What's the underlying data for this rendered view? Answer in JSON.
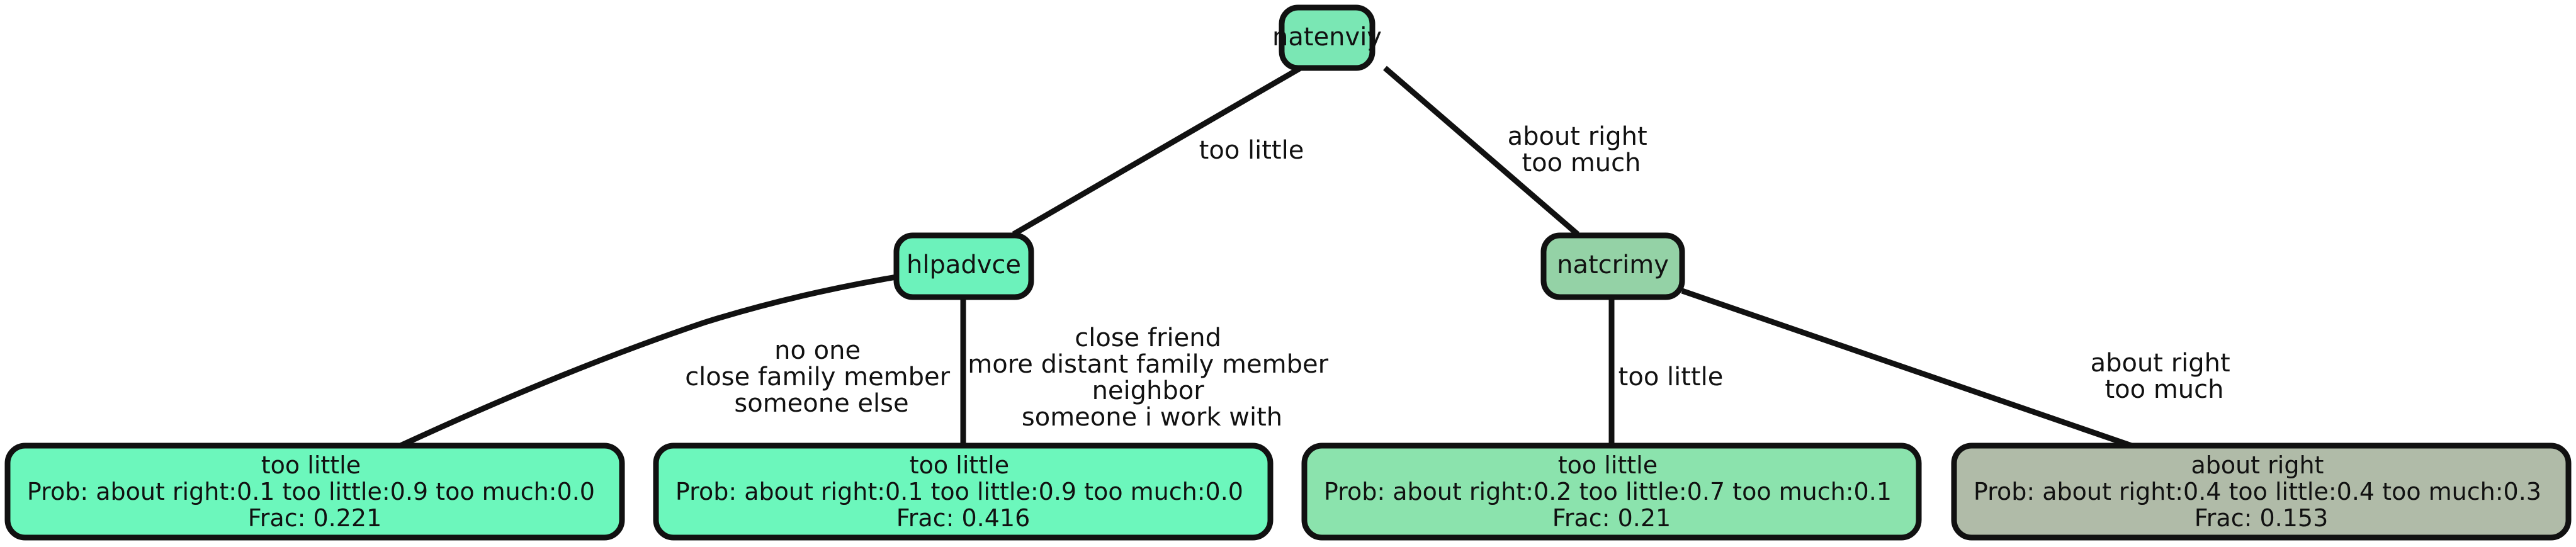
{
  "tree": {
    "nodes": [
      {
        "id": "natenviy",
        "label": "natenviy",
        "color": "#7ae7b4"
      },
      {
        "id": "hlpadvce",
        "label": "hlpadvce",
        "color": "#6cf2bb"
      },
      {
        "id": "natcrimy",
        "label": "natcrimy",
        "color": "#94d2a6"
      }
    ],
    "leaves": [
      {
        "id": "leaf1",
        "class": "too little",
        "prob": "Prob: about right:0.1 too little:0.9 too much:0.0",
        "frac": "Frac: 0.221",
        "color": "#6cf7bc"
      },
      {
        "id": "leaf2",
        "class": "too little",
        "prob": "Prob: about right:0.1 too little:0.9 too much:0.0",
        "frac": "Frac: 0.416",
        "color": "#6cf7bc"
      },
      {
        "id": "leaf3",
        "class": "too little",
        "prob": "Prob: about right:0.2 too little:0.7 too much:0.1",
        "frac": "Frac: 0.21",
        "color": "#8be3ad"
      },
      {
        "id": "leaf4",
        "class": "about right",
        "prob": "Prob: about right:0.4 too little:0.4 too much:0.3",
        "frac": "Frac: 0.153",
        "color": "#b0bba8"
      }
    ],
    "edges": [
      {
        "id": "e-natenviy-hlpadvce",
        "lines": [
          "too little"
        ]
      },
      {
        "id": "e-natenviy-natcrimy",
        "lines": [
          "about right",
          "too much"
        ]
      },
      {
        "id": "e-hlpadvce-leaf1",
        "lines": [
          "no one",
          "close family member",
          "someone else"
        ]
      },
      {
        "id": "e-hlpadvce-leaf2",
        "lines": [
          "close friend",
          "more distant family member",
          "neighbor",
          "someone i work with"
        ]
      },
      {
        "id": "e-natcrimy-leaf3",
        "lines": [
          "too little"
        ]
      },
      {
        "id": "e-natcrimy-leaf4",
        "lines": [
          "about right",
          "too much"
        ]
      }
    ]
  }
}
